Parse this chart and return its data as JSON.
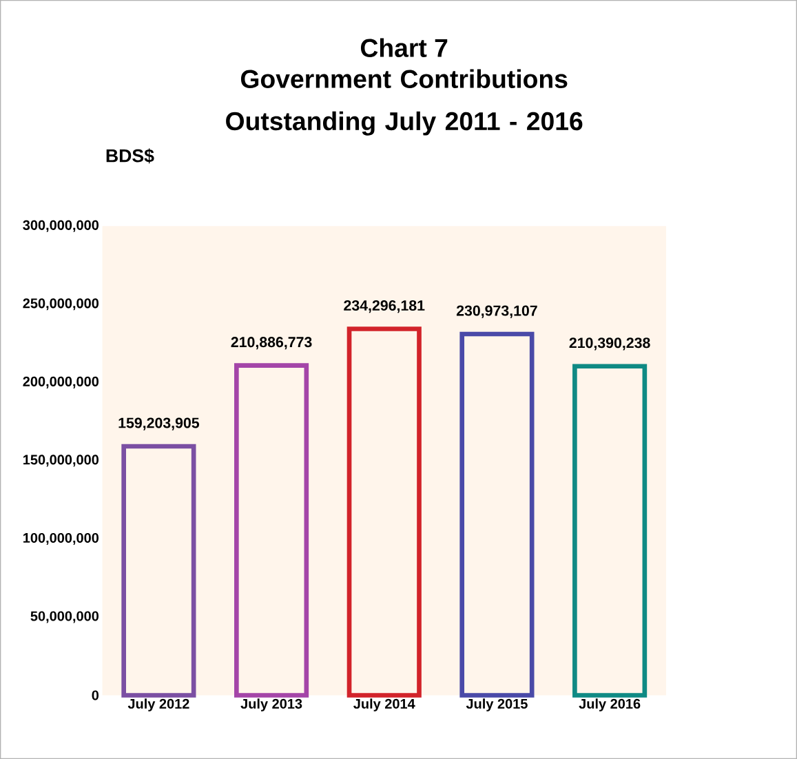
{
  "chart_data": {
    "type": "bar",
    "title": "Chart 7",
    "subtitle": "Government Contributions Outstanding July 2011 - 2016",
    "ylabel": "BDS$",
    "categories": [
      "July 2012",
      "July 2013",
      "July 2014",
      "July 2015",
      "July 2016"
    ],
    "values": [
      159203905,
      210886773,
      234296181,
      230973107,
      210390238
    ],
    "colors": [
      "#7b4fa3",
      "#a445a8",
      "#d2232a",
      "#4a4aa8",
      "#0f8a84"
    ],
    "value_labels": [
      "159,203,905",
      "210,886,773",
      "234,296,181",
      "230,973,107",
      "210,390,238"
    ],
    "ylim": [
      0,
      300000000
    ],
    "yticks": [
      {
        "value": 0,
        "label": "0"
      },
      {
        "value": 50000000,
        "label": "50,000,000"
      },
      {
        "value": 100000000,
        "label": "100,000,000"
      },
      {
        "value": 150000000,
        "label": "150,000,000"
      },
      {
        "value": 200000000,
        "label": "200,000,000"
      },
      {
        "value": 250000000,
        "label": "250,000,000"
      },
      {
        "value": 300000000,
        "label": "300,000,000"
      }
    ],
    "grid": false
  }
}
